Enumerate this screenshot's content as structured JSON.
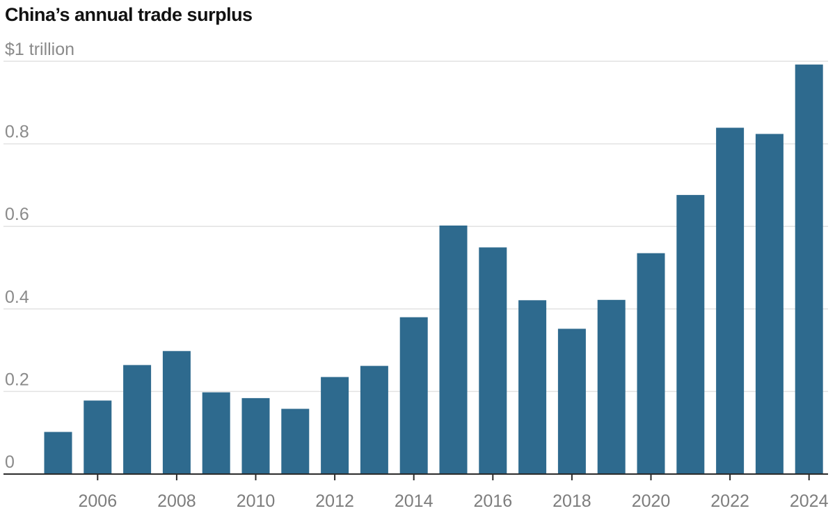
{
  "chart_data": {
    "type": "bar",
    "title": "China’s annual trade surplus",
    "xlabel": "",
    "ylabel": "",
    "categories": [
      "2005",
      "2006",
      "2007",
      "2008",
      "2009",
      "2010",
      "2011",
      "2012",
      "2013",
      "2014",
      "2015",
      "2016",
      "2017",
      "2018",
      "2019",
      "2020",
      "2021",
      "2022",
      "2023",
      "2024"
    ],
    "values": [
      0.102,
      0.178,
      0.264,
      0.298,
      0.198,
      0.184,
      0.158,
      0.235,
      0.262,
      0.38,
      0.602,
      0.549,
      0.421,
      0.352,
      0.422,
      0.535,
      0.676,
      0.839,
      0.824,
      0.992
    ],
    "ylim": [
      0,
      1
    ],
    "y_ticks": [
      {
        "value": 0,
        "label": "0"
      },
      {
        "value": 0.2,
        "label": "0.2"
      },
      {
        "value": 0.4,
        "label": "0.4"
      },
      {
        "value": 0.6,
        "label": "0.6"
      },
      {
        "value": 0.8,
        "label": "0.8"
      },
      {
        "value": 1,
        "label": "$1 trillion"
      }
    ],
    "x_ticks": [
      "2006",
      "2008",
      "2010",
      "2012",
      "2014",
      "2016",
      "2018",
      "2020",
      "2022",
      "2024"
    ],
    "grid": true,
    "colors": {
      "bar": "#2e6a8e",
      "grid": "#e2e2e2",
      "baseline": "#2b2b2b",
      "tick_text": "#8a8a8a"
    }
  }
}
